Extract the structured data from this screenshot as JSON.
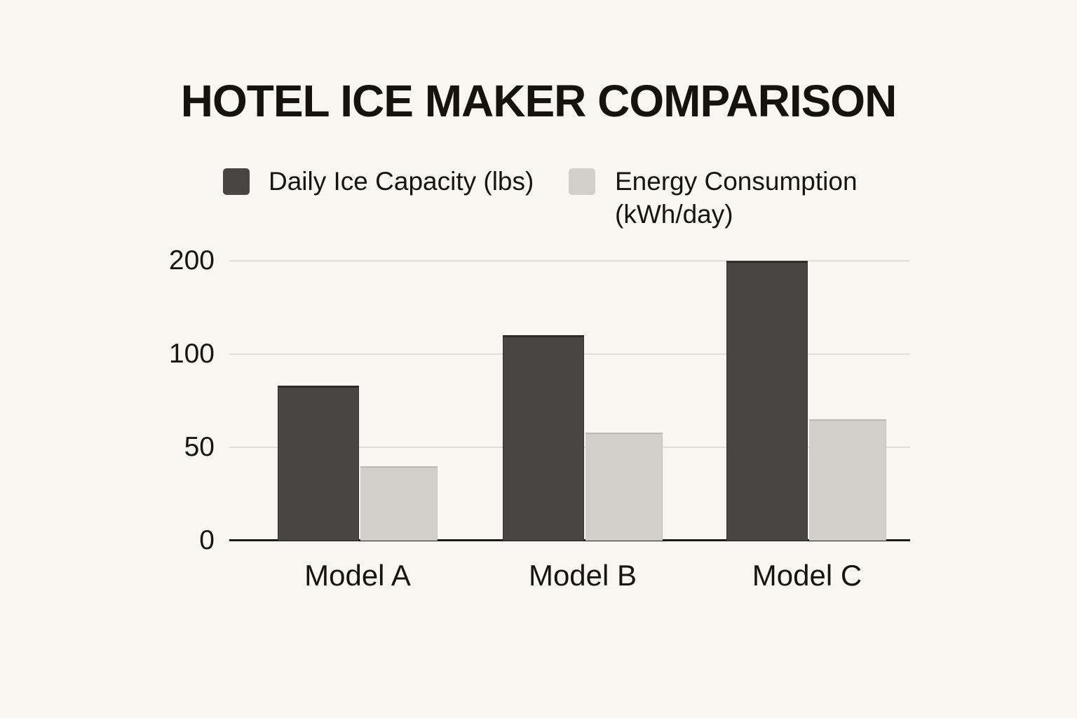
{
  "title": "HOTEL ICE MAKER COMPARISON",
  "legend": {
    "position": "top",
    "items": [
      {
        "label": "Daily Ice Capacity (lbs)",
        "color": "#484644"
      },
      {
        "label": "Energy Consumption (kWh/day)",
        "color": "#d2cfca"
      }
    ]
  },
  "chart_data": {
    "type": "bar",
    "title": "HOTEL ICE MAKER COMPARISON",
    "categories": [
      "Model A",
      "Model B",
      "Model C"
    ],
    "series": [
      {
        "name": "Daily Ice Capacity (lbs)",
        "values": [
          83,
          120,
          200
        ]
      },
      {
        "name": "Energy Consumption (kWh/day)",
        "values": [
          40,
          58,
          65
        ]
      }
    ],
    "ytick_values": [
      0,
      50,
      100,
      200
    ],
    "ytick_labels": [
      "0",
      "50",
      "100",
      "200"
    ],
    "axis_note": "y ticks evenly spaced, non-linear piecewise scale",
    "xlabel": "",
    "ylabel": "",
    "grid": true,
    "legend_position": "top"
  },
  "colors": {
    "background": "#f8f6f0",
    "capacity_bar": "#484644",
    "energy_bar": "#d2cfca",
    "gridline": "#e1ded7",
    "axis_line": "#1c1a15",
    "text": "#18150f"
  }
}
